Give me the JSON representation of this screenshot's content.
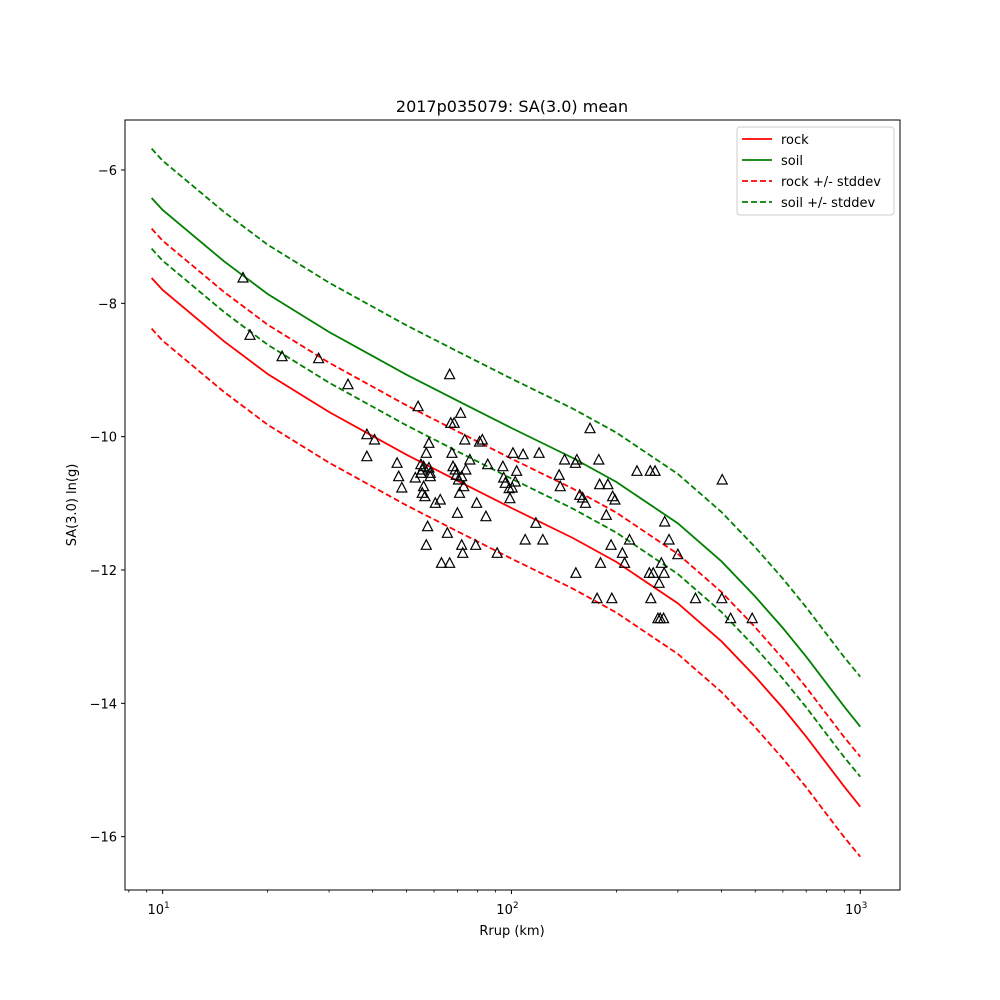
{
  "chart_data": {
    "type": "scatter",
    "title": "2017p035079: SA(3.0) mean",
    "xlabel": "Rrup (km)",
    "ylabel": "SA(3.0) ln(g)",
    "xscale": "log",
    "xlim": [
      7.8,
      1300
    ],
    "ylim": [
      -16.8,
      -5.25
    ],
    "xticks": [
      {
        "value": 10,
        "base": "10",
        "exp": "1"
      },
      {
        "value": 100,
        "base": "10",
        "exp": "2"
      },
      {
        "value": 1000,
        "base": "10",
        "exp": "3"
      }
    ],
    "yticks": [
      {
        "value": -6,
        "label": "−6"
      },
      {
        "value": -8,
        "label": "−8"
      },
      {
        "value": -10,
        "label": "−10"
      },
      {
        "value": -12,
        "label": "−12"
      },
      {
        "value": -14,
        "label": "−14"
      },
      {
        "value": -16,
        "label": "−16"
      }
    ],
    "grid": false,
    "legend_position": "top-right",
    "series": [
      {
        "name": "rock",
        "color": "#ff0000",
        "style": "solid",
        "x": [
          9.3,
          10,
          15,
          20,
          30,
          50,
          70,
          100,
          150,
          200,
          300,
          400,
          500,
          600,
          700,
          800,
          900,
          1000
        ],
        "y": [
          -7.62,
          -7.8,
          -8.57,
          -9.06,
          -9.63,
          -10.27,
          -10.66,
          -11.07,
          -11.52,
          -11.88,
          -12.5,
          -13.07,
          -13.6,
          -14.07,
          -14.5,
          -14.9,
          -15.25,
          -15.55
        ]
      },
      {
        "name": "soil",
        "color": "#008000",
        "style": "solid",
        "x": [
          9.3,
          10,
          15,
          20,
          30,
          50,
          70,
          100,
          150,
          200,
          300,
          400,
          500,
          600,
          700,
          800,
          900,
          1000
        ],
        "y": [
          -6.42,
          -6.6,
          -7.37,
          -7.86,
          -8.43,
          -9.07,
          -9.46,
          -9.87,
          -10.32,
          -10.68,
          -11.3,
          -11.87,
          -12.4,
          -12.87,
          -13.3,
          -13.7,
          -14.05,
          -14.35
        ]
      },
      {
        "name": "rock +/- stddev",
        "color": "#ff0000",
        "style": "dashed",
        "x": [
          9.3,
          10,
          15,
          20,
          30,
          50,
          70,
          100,
          150,
          200,
          300,
          400,
          500,
          600,
          700,
          800,
          900,
          1000
        ],
        "y": [
          -6.88,
          -7.06,
          -7.83,
          -8.32,
          -8.89,
          -9.53,
          -9.92,
          -10.33,
          -10.78,
          -11.14,
          -11.76,
          -12.33,
          -12.86,
          -13.33,
          -13.76,
          -14.16,
          -14.51,
          -14.8
        ]
      },
      {
        "name": "",
        "color": "#ff0000",
        "style": "dashed",
        "x": [
          9.3,
          10,
          15,
          20,
          30,
          50,
          70,
          100,
          150,
          200,
          300,
          400,
          500,
          600,
          700,
          800,
          900,
          1000
        ],
        "y": [
          -8.38,
          -8.56,
          -9.33,
          -9.82,
          -10.39,
          -11.03,
          -11.42,
          -11.83,
          -12.28,
          -12.64,
          -13.26,
          -13.83,
          -14.36,
          -14.83,
          -15.26,
          -15.66,
          -16.01,
          -16.3
        ]
      },
      {
        "name": "soil +/- stddev",
        "color": "#008000",
        "style": "dashed",
        "x": [
          9.3,
          10,
          15,
          20,
          30,
          50,
          70,
          100,
          150,
          200,
          300,
          400,
          500,
          600,
          700,
          800,
          900,
          1000
        ],
        "y": [
          -5.68,
          -5.86,
          -6.63,
          -7.12,
          -7.69,
          -8.33,
          -8.72,
          -9.13,
          -9.58,
          -9.94,
          -10.56,
          -11.13,
          -11.66,
          -12.13,
          -12.56,
          -12.96,
          -13.31,
          -13.6
        ]
      },
      {
        "name": "",
        "color": "#008000",
        "style": "dashed",
        "x": [
          9.3,
          10,
          15,
          20,
          30,
          50,
          70,
          100,
          150,
          200,
          300,
          400,
          500,
          600,
          700,
          800,
          900,
          1000
        ],
        "y": [
          -7.18,
          -7.36,
          -8.13,
          -8.62,
          -9.19,
          -9.83,
          -10.22,
          -10.63,
          -11.08,
          -11.44,
          -12.06,
          -12.63,
          -13.16,
          -13.63,
          -14.06,
          -14.46,
          -14.81,
          -15.1
        ]
      }
    ],
    "observations": {
      "marker": "triangle",
      "color": "#000000",
      "points": [
        [
          17,
          -7.62
        ],
        [
          17.8,
          -8.48
        ],
        [
          22,
          -8.8
        ],
        [
          28,
          -8.83
        ],
        [
          34,
          -9.22
        ],
        [
          38.5,
          -9.97
        ],
        [
          38.5,
          -10.3
        ],
        [
          40.5,
          -10.05
        ],
        [
          47,
          -10.4
        ],
        [
          47.5,
          -10.6
        ],
        [
          48.5,
          -10.77
        ],
        [
          53,
          -10.62
        ],
        [
          54,
          -9.55
        ],
        [
          55,
          -10.42
        ],
        [
          55,
          -10.55
        ],
        [
          55.5,
          -10.5
        ],
        [
          55.5,
          -10.85
        ],
        [
          56,
          -10.45
        ],
        [
          56,
          -10.75
        ],
        [
          56.5,
          -10.9
        ],
        [
          57,
          -10.25
        ],
        [
          57,
          -11.63
        ],
        [
          57.5,
          -11.35
        ],
        [
          58,
          -10.1
        ],
        [
          58,
          -10.47
        ],
        [
          58.5,
          -10.6
        ],
        [
          58.5,
          -10.55
        ],
        [
          60.5,
          -11
        ],
        [
          62.5,
          -10.95
        ],
        [
          63,
          -11.9
        ],
        [
          65.5,
          -11.45
        ],
        [
          66.5,
          -9.07
        ],
        [
          66.5,
          -11.9
        ],
        [
          67,
          -9.8
        ],
        [
          67.5,
          -10.25
        ],
        [
          68,
          -10.45
        ],
        [
          68.5,
          -9.8
        ],
        [
          69,
          -10.5
        ],
        [
          69.5,
          -10.58
        ],
        [
          70,
          -11.15
        ],
        [
          70.5,
          -10.65
        ],
        [
          71,
          -10.85
        ],
        [
          71.5,
          -9.65
        ],
        [
          72,
          -10.6
        ],
        [
          72,
          -11.63
        ],
        [
          72.5,
          -11.75
        ],
        [
          73,
          -10.75
        ],
        [
          73.5,
          -10.05
        ],
        [
          74,
          -10.5
        ],
        [
          76,
          -10.35
        ],
        [
          79,
          -11.63
        ],
        [
          79.5,
          -11
        ],
        [
          81,
          -10.08
        ],
        [
          82.5,
          -10.05
        ],
        [
          84.5,
          -11.2
        ],
        [
          85.5,
          -10.42
        ],
        [
          91,
          -11.75
        ],
        [
          94.5,
          -10.45
        ],
        [
          95,
          -10.62
        ],
        [
          96,
          -10.7
        ],
        [
          98.5,
          -10.78
        ],
        [
          99,
          -10.93
        ],
        [
          100.5,
          -10.77
        ],
        [
          101,
          -10.25
        ],
        [
          102.5,
          -10.68
        ],
        [
          103.5,
          -10.52
        ],
        [
          108,
          -10.27
        ],
        [
          109.5,
          -11.55
        ],
        [
          117.5,
          -11.3
        ],
        [
          120,
          -10.25
        ],
        [
          123,
          -11.55
        ],
        [
          137,
          -10.58
        ],
        [
          138,
          -10.75
        ],
        [
          142,
          -10.35
        ],
        [
          152.5,
          -10.4
        ],
        [
          153,
          -12.05
        ],
        [
          154,
          -10.35
        ],
        [
          157,
          -10.88
        ],
        [
          160,
          -10.92
        ],
        [
          163,
          -11
        ],
        [
          168,
          -9.88
        ],
        [
          176,
          -12.43
        ],
        [
          178,
          -10.35
        ],
        [
          179,
          -10.72
        ],
        [
          180,
          -11.9
        ],
        [
          187,
          -11.18
        ],
        [
          189,
          -10.72
        ],
        [
          193,
          -11.63
        ],
        [
          194,
          -12.43
        ],
        [
          195,
          -10.9
        ],
        [
          198,
          -10.95
        ],
        [
          208,
          -11.75
        ],
        [
          211,
          -11.9
        ],
        [
          218,
          -11.55
        ],
        [
          229,
          -10.52
        ],
        [
          248.5,
          -12.05
        ],
        [
          250,
          -10.52
        ],
        [
          251,
          -12.43
        ],
        [
          255,
          -12.05
        ],
        [
          258,
          -10.52
        ],
        [
          263,
          -12.73
        ],
        [
          265,
          -12.2
        ],
        [
          267,
          -12.73
        ],
        [
          269,
          -11.9
        ],
        [
          273,
          -12.73
        ],
        [
          274,
          -12.05
        ],
        [
          275,
          -11.28
        ],
        [
          283,
          -11.55
        ],
        [
          300,
          -11.77
        ],
        [
          337,
          -12.43
        ],
        [
          401,
          -12.43
        ],
        [
          402,
          -10.65
        ],
        [
          425,
          -12.73
        ],
        [
          490,
          -12.73
        ]
      ]
    }
  }
}
